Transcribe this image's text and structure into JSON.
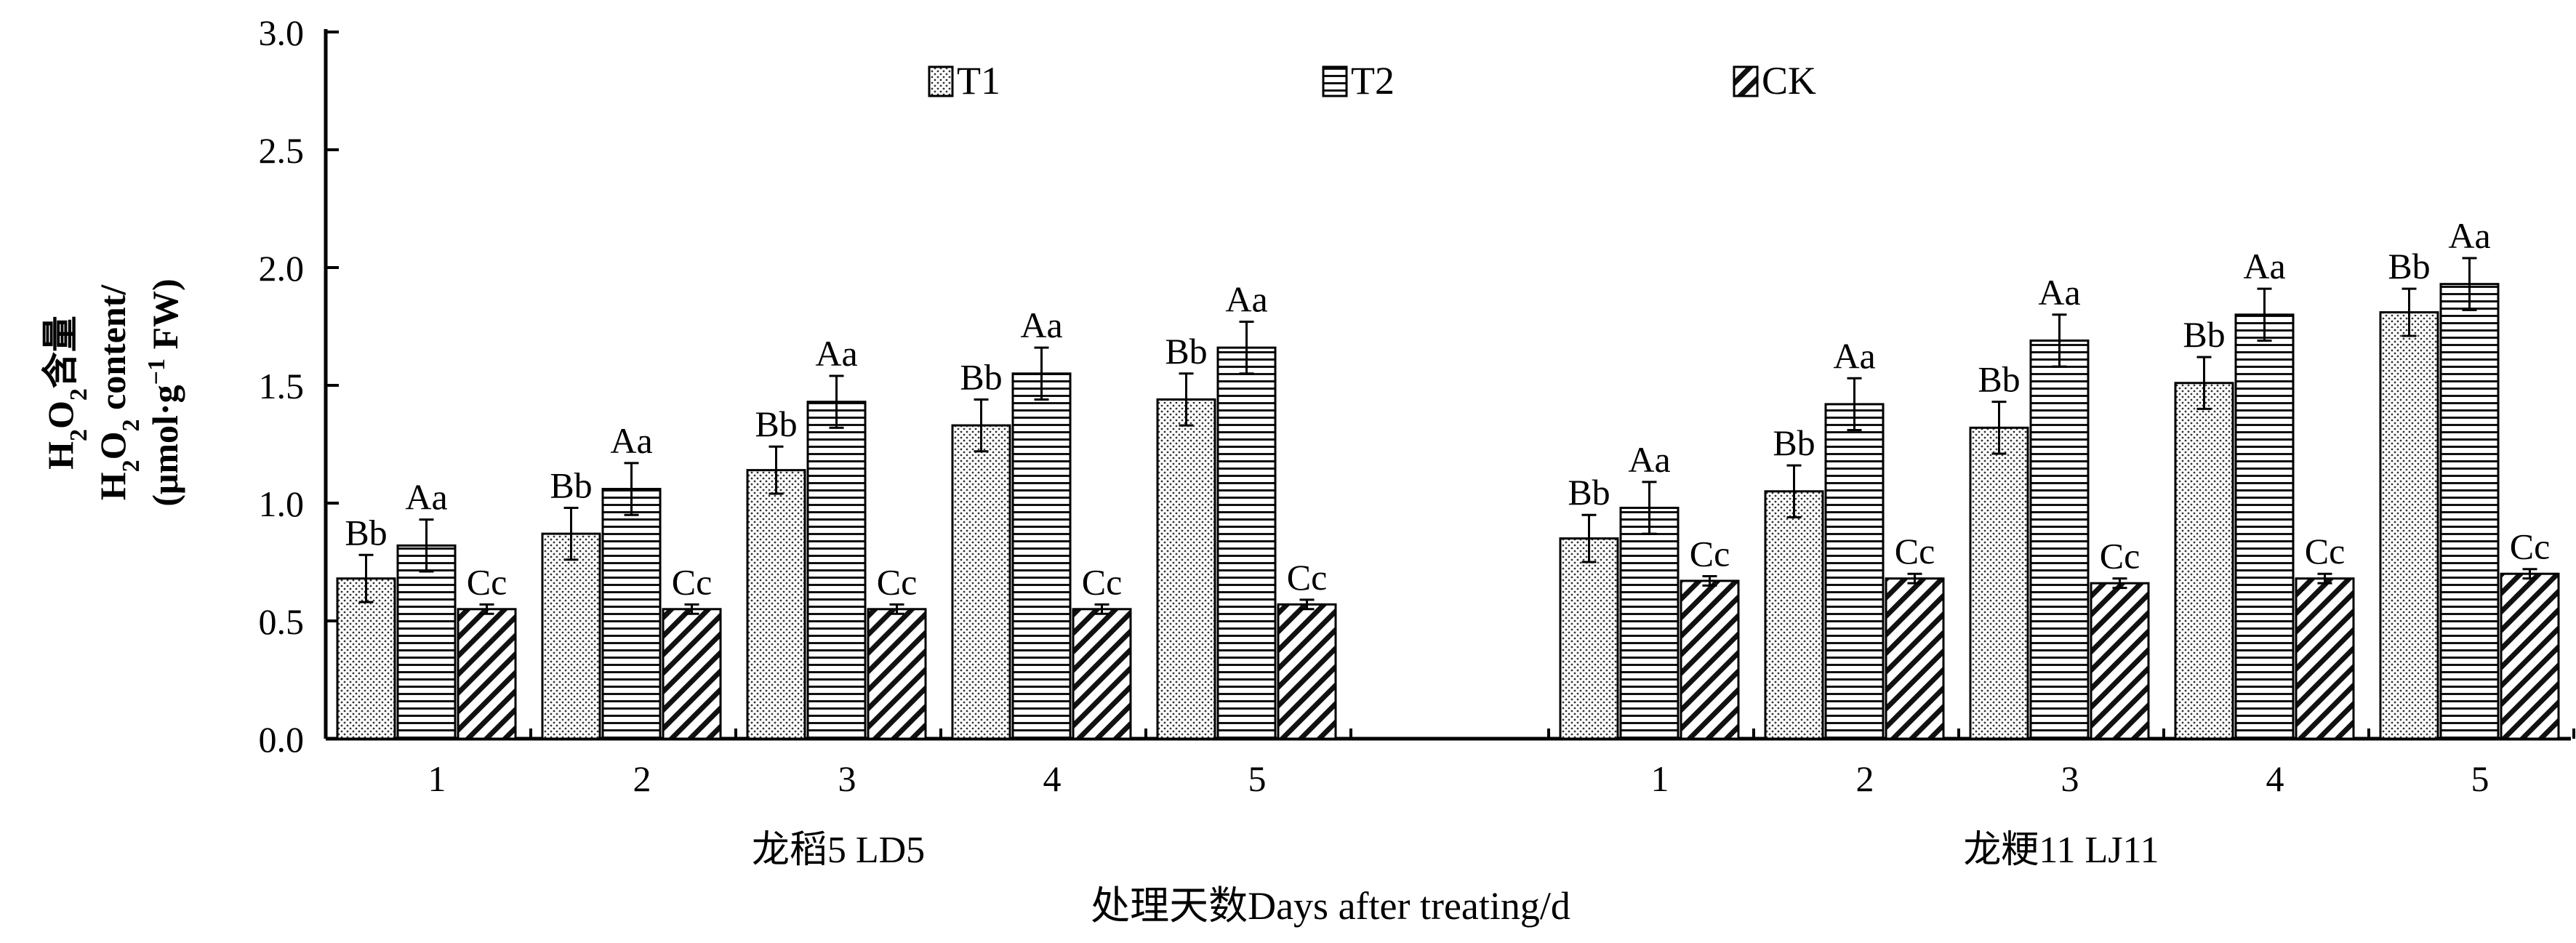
{
  "chart_data": {
    "type": "bar",
    "ylabel_lines": [
      "H2O2含量",
      "H2O2 content/",
      "(μmol·g−1 FW)"
    ],
    "ylim": [
      0,
      3.0
    ],
    "yticks": [
      "0.0",
      "0.5",
      "1.0",
      "1.5",
      "2.0",
      "2.5",
      "3.0"
    ],
    "xlabel": "处理天数Days after treating/d",
    "legend": {
      "placement": "top-center"
    },
    "series": [
      {
        "name": "T1",
        "pattern": "dots"
      },
      {
        "name": "T2",
        "pattern": "horizontal-lines"
      },
      {
        "name": "CK",
        "pattern": "diagonal-hatch"
      }
    ],
    "groups": [
      {
        "label": "龙稻5 LD5",
        "categories": [
          "1",
          "2",
          "3",
          "4",
          "5"
        ],
        "values": {
          "T1": [
            0.68,
            0.87,
            1.14,
            1.33,
            1.44
          ],
          "T2": [
            0.82,
            1.06,
            1.43,
            1.55,
            1.66
          ],
          "CK": [
            0.55,
            0.55,
            0.55,
            0.55,
            0.57
          ]
        },
        "errors": {
          "T1": [
            0.1,
            0.11,
            0.1,
            0.11,
            0.11
          ],
          "T2": [
            0.11,
            0.11,
            0.11,
            0.11,
            0.11
          ],
          "CK": [
            0.02,
            0.02,
            0.02,
            0.02,
            0.02
          ]
        },
        "labels": {
          "T1": [
            "Bb",
            "Bb",
            "Bb",
            "Bb",
            "Bb"
          ],
          "T2": [
            "Aa",
            "Aa",
            "Aa",
            "Aa",
            "Aa"
          ],
          "CK": [
            "Cc",
            "Cc",
            "Cc",
            "Cc",
            "Cc"
          ]
        }
      },
      {
        "label": "龙粳11 LJ11",
        "categories": [
          "1",
          "2",
          "3",
          "4",
          "5"
        ],
        "values": {
          "T1": [
            0.85,
            1.05,
            1.32,
            1.51,
            1.81
          ],
          "T2": [
            0.98,
            1.42,
            1.69,
            1.8,
            1.93
          ],
          "CK": [
            0.67,
            0.68,
            0.66,
            0.68,
            0.7
          ]
        },
        "errors": {
          "T1": [
            0.1,
            0.11,
            0.11,
            0.11,
            0.1
          ],
          "T2": [
            0.11,
            0.11,
            0.11,
            0.11,
            0.11
          ],
          "CK": [
            0.02,
            0.02,
            0.02,
            0.02,
            0.02
          ]
        },
        "labels": {
          "T1": [
            "Bb",
            "Bb",
            "Bb",
            "Bb",
            "Bb"
          ],
          "T2": [
            "Aa",
            "Aa",
            "Aa",
            "Aa",
            "Aa"
          ],
          "CK": [
            "Cc",
            "Cc",
            "Cc",
            "Cc",
            "Cc"
          ]
        }
      }
    ]
  }
}
